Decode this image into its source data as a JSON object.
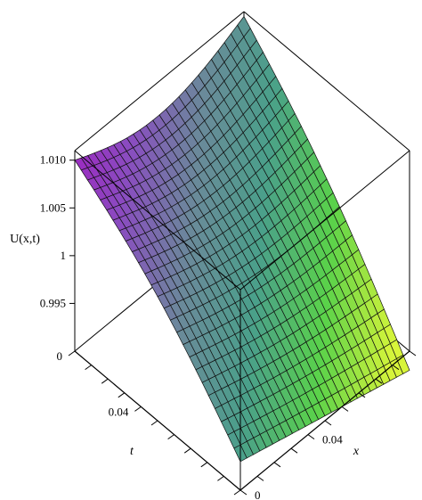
{
  "chart_data": {
    "type": "surface3d",
    "title": "",
    "zlabel": "U(x,t)",
    "xlabel": "x",
    "tlabel": "t",
    "x_range": [
      0,
      0.1
    ],
    "t_range": [
      0,
      0.1
    ],
    "z_range": [
      0.99,
      1.011
    ],
    "z_ticks": [
      {
        "value": 1.01,
        "label": "1.010"
      },
      {
        "value": 1.005,
        "label": "1.005"
      },
      {
        "value": 1.0,
        "label": "1"
      },
      {
        "value": 0.995,
        "label": "0.995"
      }
    ],
    "x_tick_labels": [
      {
        "value": 0,
        "label": "0"
      },
      {
        "value": 0.04,
        "label": "0.04"
      }
    ],
    "t_tick_labels": [
      {
        "value": 0,
        "label": "0"
      },
      {
        "value": 0.04,
        "label": "0.04"
      }
    ],
    "grid_lines": 26,
    "corner_values": {
      "x0_t0": 1.01,
      "x1_t0": 1.0105,
      "x0_t1": 0.993,
      "x1_t1": 0.988
    },
    "colormap": [
      "#a020c0",
      "#8a4cc0",
      "#6a8a9a",
      "#4aa08a",
      "#5ad24a",
      "#d8f53a"
    ],
    "box": "on"
  }
}
